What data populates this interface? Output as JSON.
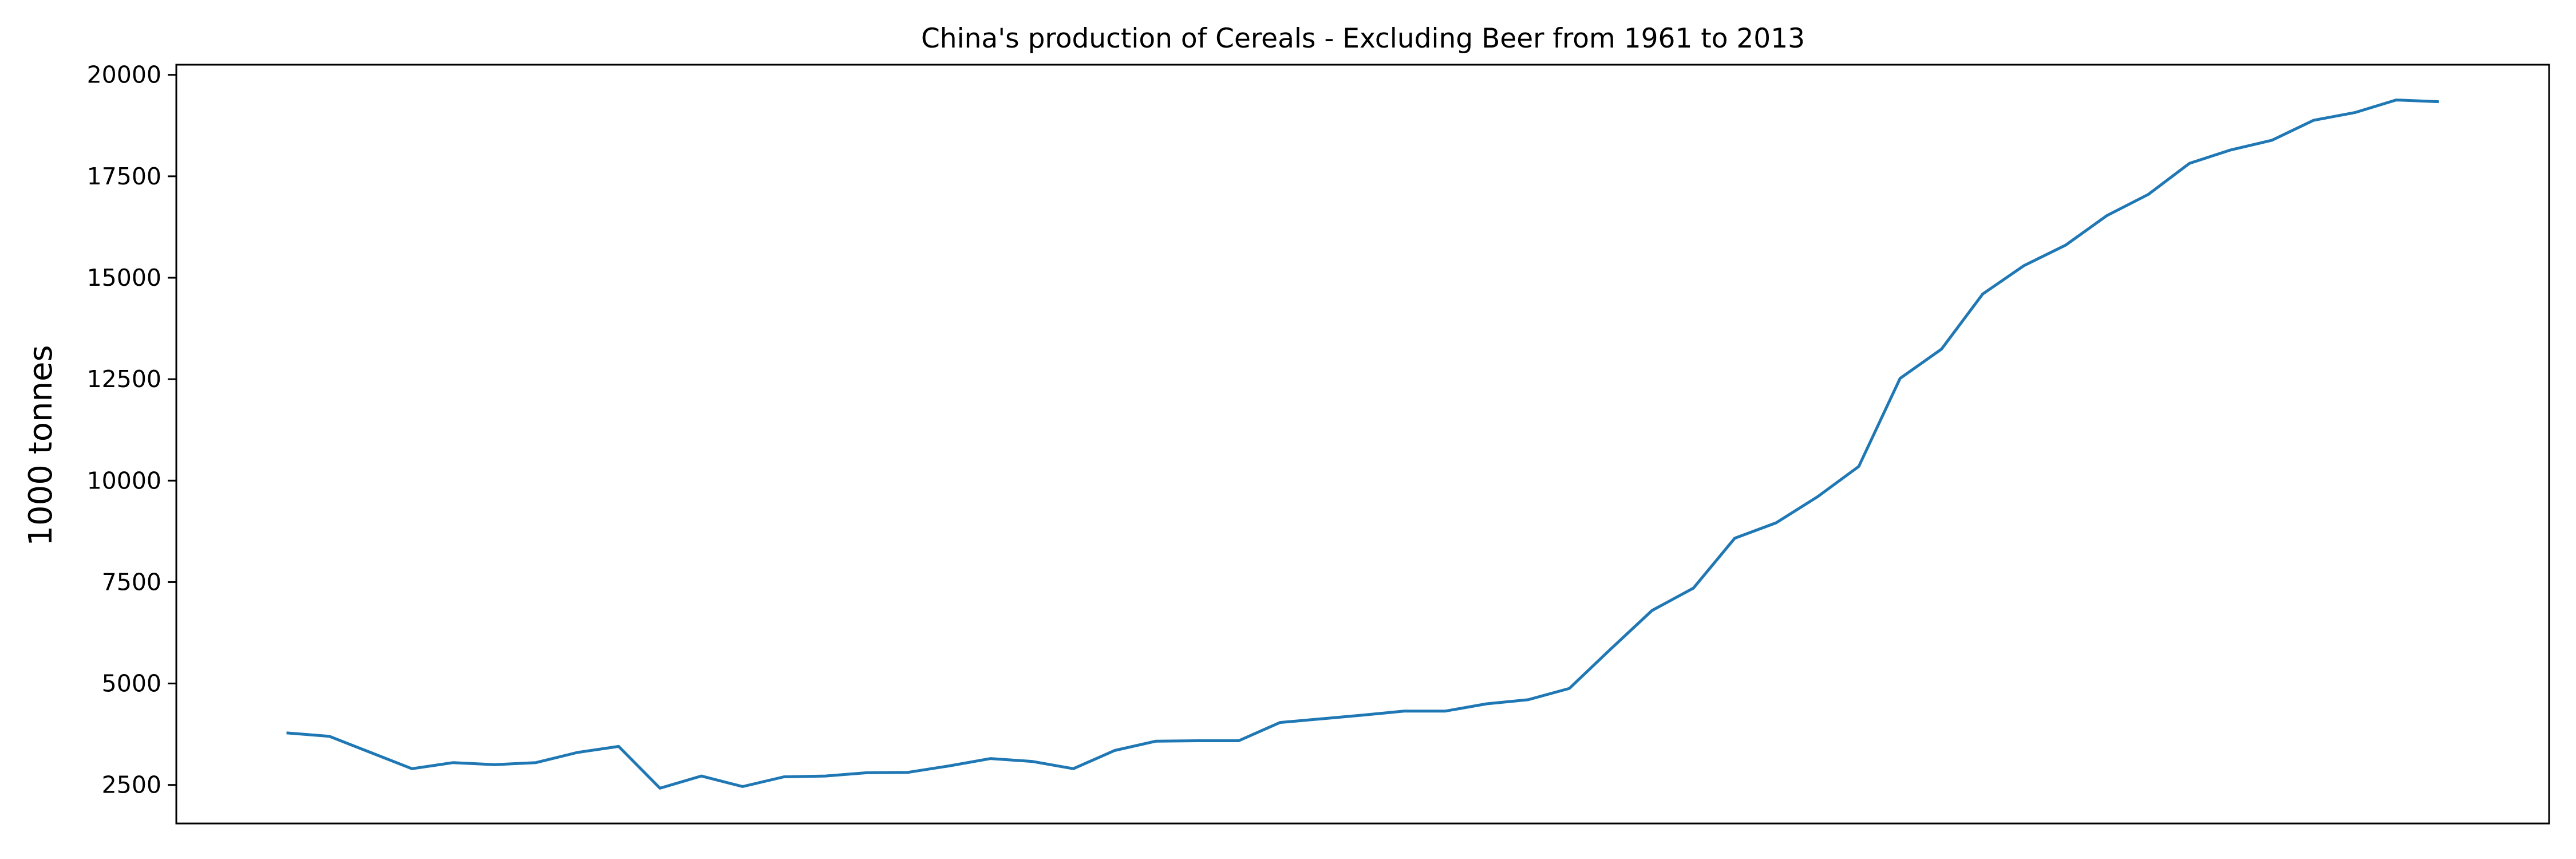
{
  "chart_data": {
    "type": "line",
    "title": "China's production of Cereals - Excluding Beer from 1961 to 2013",
    "xlabel": "",
    "ylabel": "1000 tonnes",
    "yticks": [
      2500,
      5000,
      7500,
      10000,
      12500,
      15000,
      17500,
      20000
    ],
    "ylim": [
      1550,
      20250
    ],
    "xlim": [
      1958.3,
      2015.7
    ],
    "grid": false,
    "x_tick_labels_shown": false,
    "series": [
      {
        "color": "#1f77b4",
        "x": [
          1961,
          1962,
          1963,
          1964,
          1965,
          1966,
          1967,
          1968,
          1969,
          1970,
          1971,
          1972,
          1973,
          1974,
          1975,
          1976,
          1977,
          1978,
          1979,
          1980,
          1981,
          1982,
          1983,
          1984,
          1985,
          1986,
          1987,
          1988,
          1989,
          1990,
          1991,
          1992,
          1993,
          1994,
          1995,
          1996,
          1997,
          1998,
          1999,
          2000,
          2001,
          2002,
          2003,
          2004,
          2005,
          2006,
          2007,
          2008,
          2009,
          2010,
          2011,
          2012,
          2013
        ],
        "values": [
          3780,
          3700,
          3300,
          2900,
          3050,
          3000,
          3050,
          3300,
          3450,
          2420,
          2720,
          2460,
          2700,
          2720,
          2800,
          2810,
          2970,
          3150,
          3080,
          2900,
          3350,
          3580,
          3590,
          3590,
          4040,
          4130,
          4220,
          4320,
          4320,
          4500,
          4600,
          4880,
          5850,
          6800,
          7350,
          8580,
          8960,
          9600,
          10350,
          12520,
          13240,
          14600,
          15300,
          15800,
          16530,
          17050,
          17820,
          18150,
          18390,
          18880,
          19070,
          19380,
          19340
        ]
      }
    ]
  }
}
